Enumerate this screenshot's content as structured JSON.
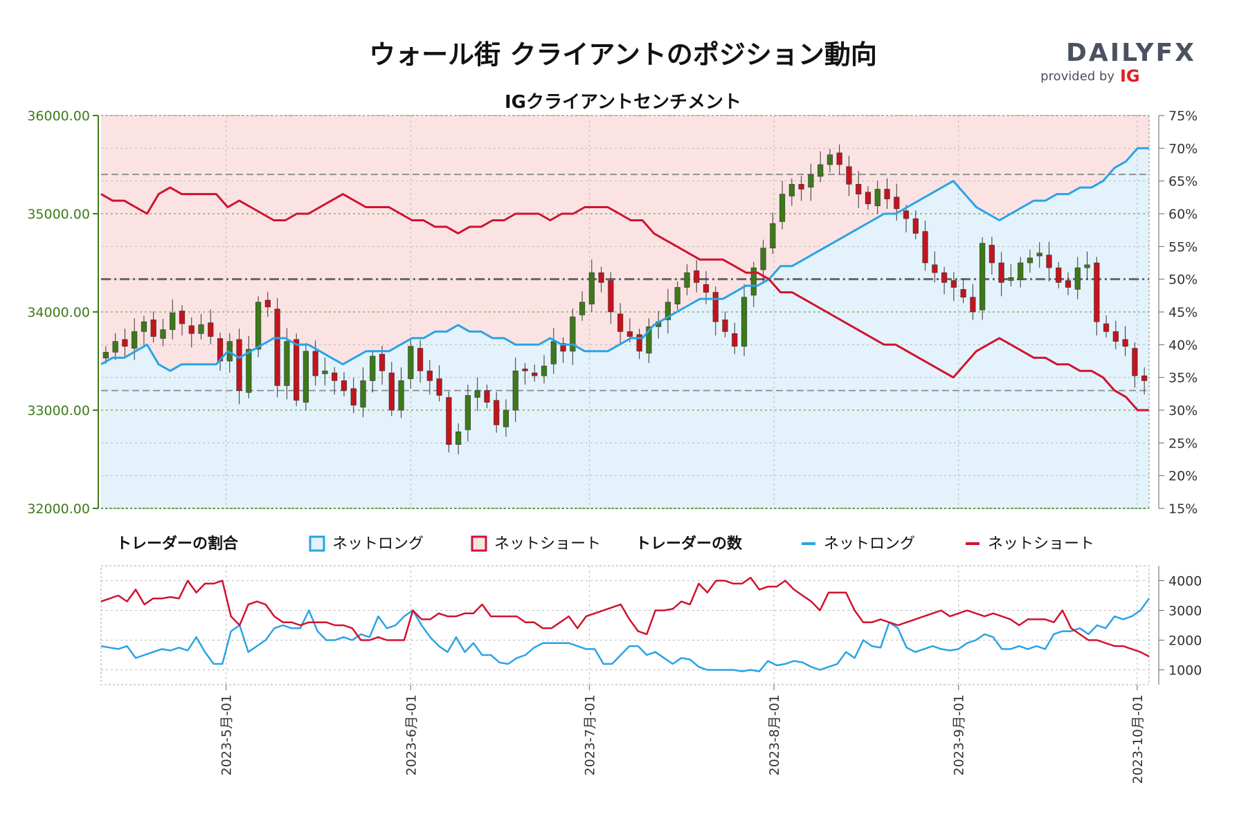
{
  "header": {
    "title": "ウォール街 クライアントのポジション動向",
    "logo_main": "DAILYFX",
    "logo_sub_prefix": "provided by",
    "logo_sub_brand": "IG"
  },
  "colors": {
    "long": "#29a3e6",
    "short": "#d0122c",
    "candle_up": "#3d7a1a",
    "candle_down": "#c4141e",
    "long_fill": "#e3f2fb",
    "short_fill": "#fbe3e4",
    "price_axis": "#3d7a1a"
  },
  "legend": {
    "ratio_title": "トレーダーの割合",
    "ratio_long": "ネットロング",
    "ratio_short": "ネットショート",
    "count_title": "トレーダーの数",
    "count_long": "ネットロング",
    "count_short": "ネットショート"
  },
  "chart_data": [
    {
      "type": "candlestick+line",
      "title": "IGクライアントセンチメント",
      "price_axis": {
        "side": "left",
        "range": [
          32000,
          36000
        ],
        "ticks": [
          "32000.00",
          "33000.00",
          "34000.00",
          "35000.00",
          "36000.00"
        ]
      },
      "pct_axis": {
        "side": "right",
        "range": [
          15,
          75
        ],
        "ticks": [
          "15%",
          "20%",
          "25%",
          "30%",
          "35%",
          "40%",
          "45%",
          "50%",
          "55%",
          "60%",
          "65%",
          "70%",
          "75%"
        ]
      },
      "x_range": [
        "2023-04-10",
        "2023-10-03"
      ],
      "x_ticks": [
        "2023-5月-01",
        "2023-6月-01",
        "2023-7月-01",
        "2023-8月-01",
        "2023-9月-01",
        "2023-10月-01"
      ],
      "x_tick_dates": [
        "2023-05-01",
        "2023-06-01",
        "2023-07-01",
        "2023-08-01",
        "2023-09-01",
        "2023-10-01"
      ],
      "reference_levels_pct": [
        33,
        50,
        66
      ],
      "grid": true,
      "series": [
        {
          "name": "ネットロング",
          "unit": "%",
          "values": [
            37,
            38,
            38,
            39,
            40,
            37,
            36,
            37,
            37,
            37,
            37,
            39,
            38,
            39,
            40,
            41,
            41,
            40,
            40,
            39,
            38,
            37,
            38,
            39,
            39,
            39,
            40,
            41,
            41,
            42,
            42,
            43,
            42,
            42,
            41,
            41,
            40,
            40,
            40,
            41,
            40,
            40,
            39,
            39,
            39,
            40,
            41,
            41,
            43,
            44,
            45,
            46,
            47,
            47,
            47,
            48,
            49,
            49,
            50,
            52,
            52,
            53,
            54,
            55,
            56,
            57,
            58,
            59,
            60,
            60,
            61,
            62,
            63,
            64,
            65,
            63,
            61,
            60,
            59,
            60,
            61,
            62,
            62,
            63,
            63,
            64,
            64,
            65,
            67,
            68,
            70,
            70
          ]
        },
        {
          "name": "ネットショート",
          "unit": "%",
          "values": [
            63,
            62,
            62,
            61,
            60,
            63,
            64,
            63,
            63,
            63,
            63,
            61,
            62,
            61,
            60,
            59,
            59,
            60,
            60,
            61,
            62,
            63,
            62,
            61,
            61,
            61,
            60,
            59,
            59,
            58,
            58,
            57,
            58,
            58,
            59,
            59,
            60,
            60,
            60,
            59,
            60,
            60,
            61,
            61,
            61,
            60,
            59,
            59,
            57,
            56,
            55,
            54,
            53,
            53,
            53,
            52,
            51,
            51,
            50,
            48,
            48,
            47,
            46,
            45,
            44,
            43,
            42,
            41,
            40,
            40,
            39,
            38,
            37,
            36,
            35,
            37,
            39,
            40,
            41,
            40,
            39,
            38,
            38,
            37,
            37,
            36,
            36,
            35,
            33,
            32,
            30,
            30
          ]
        }
      ],
      "candles": {
        "note": "daily OHLC of Wall Street index (approx)",
        "close": [
          33590,
          33700,
          33650,
          33800,
          33900,
          33750,
          33820,
          33990,
          33880,
          33780,
          33870,
          33750,
          33500,
          33700,
          33200,
          33620,
          34100,
          34050,
          33250,
          33700,
          33100,
          33600,
          33350,
          33400,
          33300,
          33200,
          33050,
          33300,
          33550,
          33400,
          33000,
          33300,
          33650,
          33400,
          33300,
          33150,
          32650,
          32780,
          33150,
          33200,
          33080,
          32850,
          33000,
          33400,
          33400,
          33350,
          33450,
          33700,
          33600,
          33950,
          34100,
          34400,
          34300,
          34000,
          33800,
          33750,
          33600,
          33850,
          33900,
          34100,
          34250,
          34400,
          34300,
          34200,
          33900,
          33800,
          33650,
          34150,
          34450,
          34650,
          34900,
          35200,
          35300,
          35250,
          35400,
          35500,
          35600,
          35500,
          35300,
          35200,
          35100,
          35250,
          35150,
          35050,
          34950,
          34800,
          34500,
          34400,
          34300,
          34250,
          34150,
          34000,
          34700,
          34500,
          34300,
          34350,
          34500,
          34550,
          34600,
          34450,
          34300,
          34250,
          34450,
          34480,
          33900,
          33800,
          33700,
          33650,
          33350,
          33300
        ]
      }
    },
    {
      "type": "line",
      "title": "トレーダーの数",
      "y_range": [
        500,
        4500
      ],
      "y_ticks": [
        "1000",
        "2000",
        "3000",
        "4000"
      ],
      "series": [
        {
          "name": "ネットロング",
          "values": [
            1800,
            1750,
            1700,
            1800,
            1400,
            1500,
            1600,
            1700,
            1650,
            1750,
            1650,
            2100,
            1600,
            1200,
            1200,
            2300,
            2500,
            1600,
            1800,
            2000,
            2400,
            2500,
            2400,
            2400,
            3000,
            2300,
            2000,
            2000,
            2100,
            2000,
            2200,
            2100,
            2800,
            2400,
            2500,
            2800,
            3000,
            2500,
            2100,
            1800,
            1600,
            2100,
            1600,
            1900,
            1500,
            1500,
            1250,
            1200,
            1400,
            1500,
            1750,
            1900,
            1900,
            1900,
            1900,
            1800,
            1700,
            1700,
            1200,
            1200,
            1500,
            1800,
            1800,
            1500,
            1600,
            1400,
            1200,
            1400,
            1350,
            1100,
            1000,
            1000,
            1000,
            1000,
            950,
            1000,
            950,
            1300,
            1150,
            1200,
            1300,
            1250,
            1100,
            1000,
            1100,
            1200,
            1600,
            1400,
            2000,
            1800,
            1750,
            2600,
            2400,
            1750,
            1600,
            1700,
            1800,
            1700,
            1650,
            1700,
            1900,
            2000,
            2200,
            2100,
            1700,
            1700,
            1800,
            1700,
            1800,
            1700,
            2200,
            2300,
            2300,
            2400,
            2200,
            2500,
            2400,
            2800,
            2700,
            2800,
            3000,
            3400
          ]
        },
        {
          "name": "ネットショート",
          "values": [
            3300,
            3400,
            3500,
            3300,
            3700,
            3200,
            3400,
            3400,
            3450,
            3400,
            4000,
            3600,
            3900,
            3900,
            4000,
            2800,
            2500,
            3200,
            3300,
            3200,
            2800,
            2600,
            2600,
            2500,
            2600,
            2600,
            2600,
            2500,
            2500,
            2400,
            2000,
            2000,
            2100,
            2000,
            2000,
            2000,
            3000,
            2700,
            2700,
            2900,
            2800,
            2800,
            2900,
            2900,
            3200,
            2800,
            2800,
            2800,
            2800,
            2600,
            2600,
            2400,
            2400,
            2600,
            2800,
            2400,
            2800,
            2900,
            3000,
            3100,
            3200,
            2700,
            2300,
            2200,
            3000,
            3000,
            3050,
            3300,
            3200,
            3900,
            3600,
            4000,
            4000,
            3900,
            3900,
            4100,
            3700,
            3800,
            3800,
            4000,
            3700,
            3500,
            3300,
            3000,
            3600,
            3600,
            3600,
            3000,
            2600,
            2600,
            2700,
            2600,
            2500,
            2600,
            2700,
            2800,
            2900,
            3000,
            2800,
            2900,
            3000,
            2900,
            2800,
            2900,
            2800,
            2700,
            2500,
            2700,
            2700,
            2700,
            2600,
            3000,
            2400,
            2200,
            2000,
            2000,
            1900,
            1800,
            1800,
            1700,
            1600,
            1450
          ]
        }
      ]
    }
  ]
}
